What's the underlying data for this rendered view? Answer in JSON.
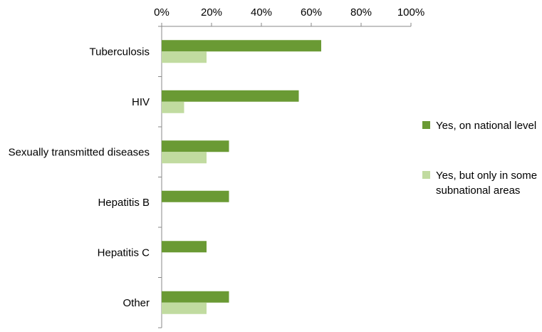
{
  "chart_data": {
    "type": "bar",
    "orientation": "horizontal",
    "x_axis_position": "top",
    "xlim": [
      0,
      100
    ],
    "x_ticks": [
      0,
      20,
      40,
      60,
      80,
      100
    ],
    "x_tick_labels": [
      "0%",
      "20%",
      "40%",
      "60%",
      "80%",
      "100%"
    ],
    "categories": [
      "Tuberculosis",
      "HIV",
      "Sexually transmitted  diseases",
      "Hepatitis B",
      "Hepatitis C",
      "Other"
    ],
    "series": [
      {
        "name": "Yes, on national level",
        "color": "#6a9a34",
        "values": [
          64,
          55,
          27,
          27,
          18,
          27
        ]
      },
      {
        "name": "Yes, but only in some subnational areas",
        "color": "#c1dba0",
        "values": [
          18,
          9,
          18,
          0,
          0,
          18
        ]
      }
    ],
    "legend": {
      "position": "right",
      "entries": [
        [
          "Yes, on national level"
        ],
        [
          "Yes, but only in some",
          "subnational areas"
        ]
      ]
    },
    "title": "",
    "xlabel": "",
    "ylabel": "",
    "grid": false
  }
}
